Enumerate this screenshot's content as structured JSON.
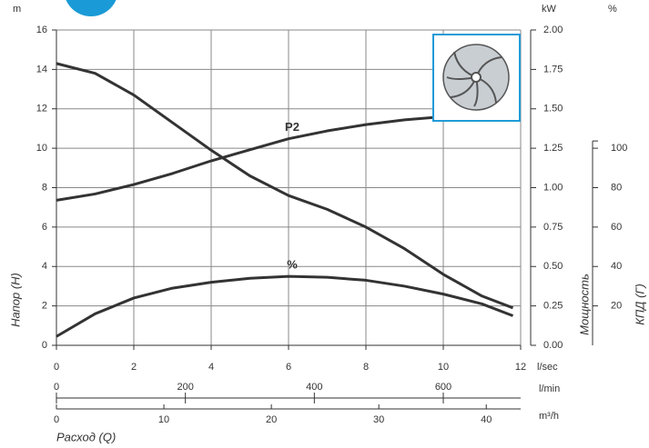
{
  "chart_data": {
    "type": "line",
    "x_label": "Расход (Q)",
    "x_unit": "l/sec",
    "xlim": [
      0,
      12
    ],
    "xticks": [
      0,
      2,
      4,
      6,
      8,
      10,
      12
    ],
    "x2_unit": "l/min",
    "x2lim": [
      0,
      720
    ],
    "x2ticks": [
      0,
      200,
      400,
      600
    ],
    "x3_unit": "m³/h",
    "x3lim": [
      0,
      43.2
    ],
    "x3ticks": [
      0,
      10,
      20,
      30,
      40
    ],
    "y_label": "Напор (H)",
    "y_unit": "m",
    "ylim": [
      0,
      16
    ],
    "yticks": [
      0,
      2,
      4,
      6,
      8,
      10,
      12,
      14,
      16
    ],
    "y2_label": "Мощность",
    "y2_unit": "kW",
    "y2lim": [
      0,
      2
    ],
    "y2ticks": [
      {
        "value": 0,
        "label": "0.00"
      },
      {
        "value": 0.25,
        "label": "0.25"
      },
      {
        "value": 0.5,
        "label": "0.50"
      },
      {
        "value": 0.75,
        "label": "0.75"
      },
      {
        "value": 1,
        "label": "1.00"
      },
      {
        "value": 1.25,
        "label": "1.25"
      },
      {
        "value": 1.5,
        "label": "1.50"
      },
      {
        "value": 1.75,
        "label": "1.75"
      },
      {
        "value": 2,
        "label": "2.00"
      }
    ],
    "y3_label": "КПД (Г)",
    "y3_unit": "%",
    "y3lim": [
      0,
      160
    ],
    "y3ticks": [
      20,
      40,
      60,
      80,
      100
    ],
    "grid": true,
    "series": [
      {
        "color": "#333333",
        "axis": "y",
        "x": [
          0,
          1,
          2,
          3,
          4,
          5,
          6,
          7,
          8,
          9,
          10,
          11,
          11.8
        ],
        "values": [
          14.3,
          13.8,
          12.7,
          11.3,
          9.9,
          8.6,
          7.6,
          6.9,
          6.0,
          4.9,
          3.6,
          2.5,
          1.9
        ]
      },
      {
        "name": "P2",
        "color": "#333333",
        "axis": "y2",
        "x": [
          0,
          1,
          2,
          3,
          4,
          5,
          6,
          7,
          8,
          9,
          10,
          10.4
        ],
        "values": [
          0.92,
          0.96,
          1.02,
          1.09,
          1.17,
          1.24,
          1.31,
          1.36,
          1.4,
          1.43,
          1.45,
          1.46
        ]
      },
      {
        "name": "%",
        "color": "#333333",
        "axis": "y3",
        "x": [
          0,
          1,
          2,
          3,
          4,
          5,
          6,
          7,
          8,
          9,
          10,
          11,
          11.8
        ],
        "values": [
          4.5,
          16,
          24,
          29,
          32,
          34,
          35,
          34.5,
          33,
          30,
          26,
          21,
          15
        ]
      }
    ]
  }
}
